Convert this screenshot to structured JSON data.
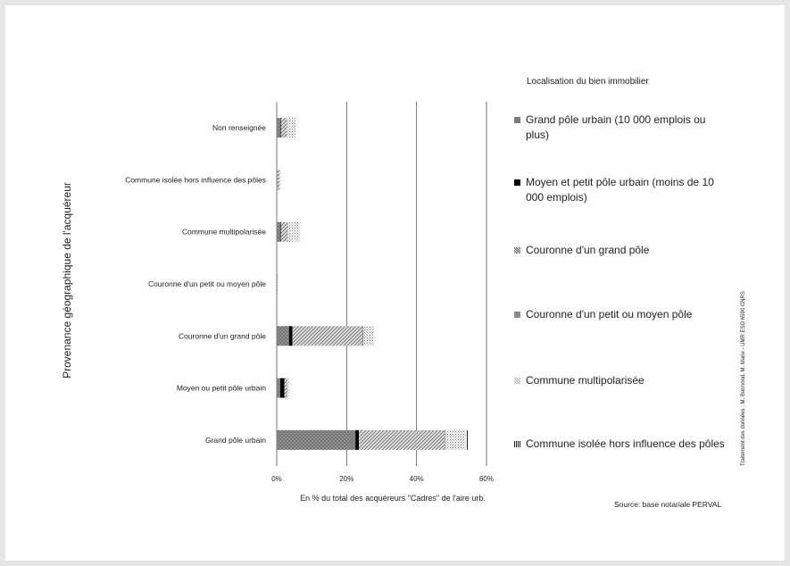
{
  "chart_data": {
    "type": "bar",
    "orientation": "horizontal",
    "stacked": true,
    "categories": [
      "Non renseignée",
      "Commune isolée hors influence des pôles",
      "Commune multipolarisée",
      "Couronne d'un petit ou moyen pôle",
      "Couronne d'un grand pôle",
      "Moyen ou petit pôle urbain",
      "Grand pôle urbain"
    ],
    "series": [
      {
        "name": "Grand pôle urbain (10 000 emplois ou plus)",
        "values": [
          1.0,
          0.2,
          1.0,
          0.1,
          3.5,
          1.0,
          22.5
        ]
      },
      {
        "name": "Moyen et petit pôle urbain (moins de 10 000 emplois)",
        "values": [
          0.2,
          0.0,
          0.2,
          0.0,
          1.0,
          1.2,
          1.0
        ]
      },
      {
        "name": "Couronne d'un grand pôle",
        "values": [
          1.8,
          0.6,
          2.0,
          0.1,
          20.0,
          0.6,
          24.5
        ]
      },
      {
        "name": "Couronne d'un petit ou moyen pôle",
        "values": [
          0.0,
          0.0,
          0.0,
          0.0,
          0.3,
          0.1,
          0.2
        ]
      },
      {
        "name": "Commune multipolarisée",
        "values": [
          2.5,
          0.3,
          3.5,
          0.1,
          3.0,
          0.6,
          6.0
        ]
      },
      {
        "name": "Commune isolée hors influence des pôles",
        "values": [
          0.0,
          0.0,
          0.0,
          0.0,
          0.0,
          0.0,
          0.5
        ]
      }
    ],
    "x_ticks": [
      "0%",
      "20%",
      "40%",
      "60%"
    ],
    "xlim": [
      0,
      60
    ],
    "xlabel": "En % du total des acquéreurs \"Cadres\" de l'aire urb.",
    "ylabel": "Provenance géographique de l'acquéreur",
    "grid": "vertical major gridlines",
    "legend_title": "Localisation du bien immobilier",
    "legend_position": "right",
    "colors": [
      "#7a7a7a",
      "#000000",
      "#9a9a9a",
      "#8a8a8a",
      "#b5b5b5",
      "#333333"
    ]
  },
  "source": "Source: base notariale PERVAL",
  "credit": "Traitement des données : M. Bermond, M. Marie - UMR ESO 6590 CNRS"
}
